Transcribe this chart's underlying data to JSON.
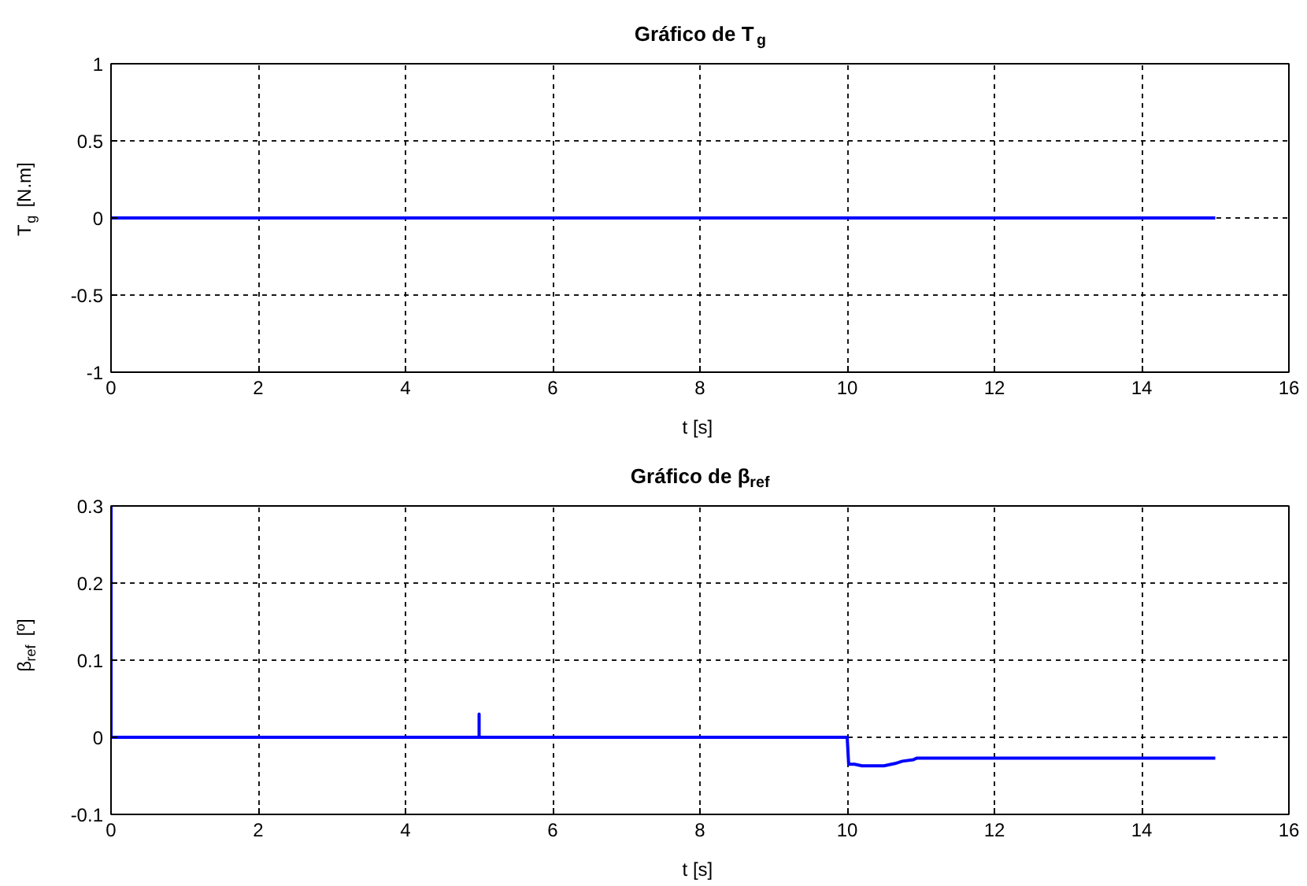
{
  "chart_data": [
    {
      "type": "line",
      "title": "Gráfico de T$_{g}$",
      "xlabel": "t [s]",
      "ylabel": "T$_{g}$ [N.m]",
      "xlim": [
        0,
        16
      ],
      "ylim": [
        -1,
        1
      ],
      "xticks": [
        0,
        2,
        4,
        6,
        8,
        10,
        12,
        14,
        16
      ],
      "yticks": [
        -1,
        -0.5,
        0,
        0.5,
        1
      ],
      "grid": true,
      "series": [
        {
          "color": "#0000ff",
          "x": [
            0,
            15
          ],
          "values": [
            0,
            0
          ]
        }
      ]
    },
    {
      "type": "line",
      "title": "Gráfico de β$_{ref}$",
      "xlabel": "t [s]",
      "ylabel": "β$_{ref}$ [º]",
      "xlim": [
        0,
        16
      ],
      "ylim": [
        -0.1,
        0.3
      ],
      "xticks": [
        0,
        2,
        4,
        6,
        8,
        10,
        12,
        14,
        16
      ],
      "yticks": [
        -0.1,
        0,
        0.1,
        0.2,
        0.3
      ],
      "grid": true,
      "series": [
        {
          "color": "#0000ff",
          "x": [
            0,
            0,
            5,
            5,
            5,
            10,
            10.02,
            10.1,
            10.2,
            10.5,
            10.65,
            10.75,
            10.9,
            10.95,
            15
          ],
          "values": [
            0.3,
            0,
            0,
            0.03,
            0,
            0,
            -0.035,
            -0.035,
            -0.037,
            -0.037,
            -0.034,
            -0.031,
            -0.029,
            -0.027,
            -0.027
          ]
        }
      ]
    }
  ]
}
